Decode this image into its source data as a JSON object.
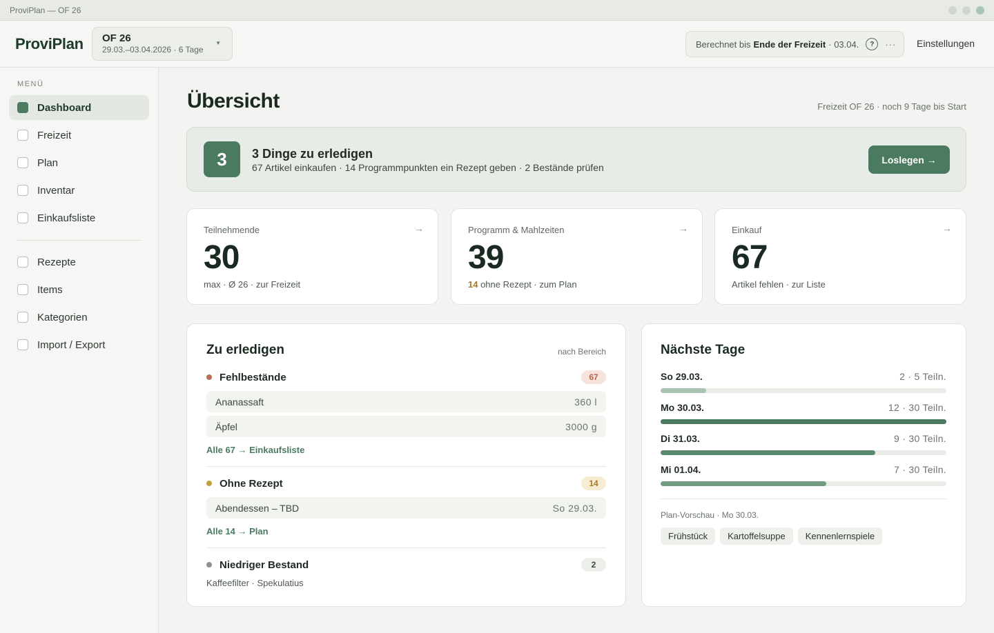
{
  "window": {
    "title": "ProviPlan — OF 26"
  },
  "header": {
    "brand": "ProviPlan",
    "event": {
      "name": "OF 26",
      "range": "29.03.–03.04.2026 · 6 Tage"
    },
    "calc": {
      "prefix": "Berechnet bis",
      "bold": "Ende der Freizeit",
      "date": "· 03.04.",
      "help": "?",
      "more": "···"
    },
    "settings": "Einstellungen"
  },
  "sidebar": {
    "menu_label": "MENÜ",
    "items": [
      {
        "label": "Dashboard",
        "active": true
      },
      {
        "label": "Freizeit"
      },
      {
        "label": "Plan"
      },
      {
        "label": "Inventar"
      },
      {
        "label": "Einkaufsliste"
      },
      {
        "label": "Rezepte"
      },
      {
        "label": "Items"
      },
      {
        "label": "Kategorien"
      },
      {
        "label": "Import / Export"
      }
    ]
  },
  "main": {
    "title": "Übersicht",
    "subtitle": "Freizeit OF 26 · noch 9 Tage bis Start",
    "todo": {
      "count": "3",
      "title": "3 Dinge zu erledigen",
      "desc": "67 Artikel einkaufen · 14 Programmpunkten ein Rezept geben · 2 Bestände prüfen",
      "button": "Loslegen →"
    },
    "stats": [
      {
        "label": "Teilnehmende",
        "value": "30",
        "foot": "max · Ø 26 · zur Freizeit",
        "arrow": "→"
      },
      {
        "label": "Programm & Mahlzeiten",
        "value": "39",
        "foot_hl": "14",
        "foot": " ohne Rezept · zum Plan",
        "arrow": "→"
      },
      {
        "label": "Einkauf",
        "value": "67",
        "foot": "Artikel fehlen · zur Liste",
        "arrow": "→"
      }
    ],
    "todos": {
      "title": "Zu erledigen",
      "by": "nach Bereich",
      "groups": [
        {
          "name": "Fehlbestände",
          "count": "67",
          "color": "#b96f56",
          "rows": [
            {
              "label": "Ananassaft",
              "value": "360 l"
            },
            {
              "label": "Äpfel",
              "value": "3000 g"
            }
          ],
          "link": "Alle 67 → Einkaufsliste"
        },
        {
          "name": "Ohne Rezept",
          "count": "14",
          "color": "#c4a03c",
          "rows": [
            {
              "label": "Abendessen – TBD",
              "value": "So 29.03."
            }
          ],
          "link": "Alle 14 → Plan"
        },
        {
          "name": "Niedriger Bestand",
          "count": "2",
          "color": "#8e928e",
          "text": "Kaffeefilter · Spekulatius"
        }
      ]
    },
    "days": {
      "title": "Nächste Tage",
      "items": [
        {
          "day": "So 29.03.",
          "info": "2 · 5 Teiln.",
          "fill": 0.16,
          "color": "#a9c4b3"
        },
        {
          "day": "Mo 30.03.",
          "info": "12 · 30 Teiln.",
          "fill": 1.0,
          "color": "#4a7a60"
        },
        {
          "day": "Di 31.03.",
          "info": "9 · 30 Teiln.",
          "fill": 0.75,
          "color": "#5a8a6e"
        },
        {
          "day": "Mi 01.04.",
          "info": "7 · 30 Teiln.",
          "fill": 0.58,
          "color": "#6f9c80"
        }
      ],
      "preview_label": "Plan-Vorschau · Mo 30.03.",
      "chips": [
        "Frühstück",
        "Kartoffelsuppe",
        "Kennenlernspiele"
      ]
    }
  }
}
